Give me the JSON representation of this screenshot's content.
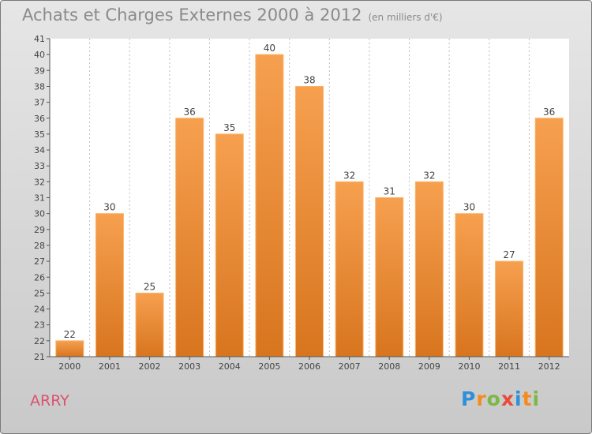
{
  "title": "Achats et Charges Externes 2000 à 2012",
  "subtitle": "(en milliers d'€)",
  "commune": "ARRY",
  "logo": {
    "text": "Proxiti",
    "letters": [
      {
        "char": "P",
        "color": "#2f8fd8"
      },
      {
        "char": "r",
        "color": "#f28c1f"
      },
      {
        "char": "o",
        "color": "#7cb843"
      },
      {
        "char": "x",
        "color": "#e84b3a"
      },
      {
        "char": "i",
        "color": "#2f8fd8"
      },
      {
        "char": "t",
        "color": "#f28c1f"
      },
      {
        "char": "i",
        "color": "#7cb843"
      }
    ]
  },
  "colors": {
    "bar_top": "#f6a04f",
    "bar_bottom": "#d8751f",
    "bar_edge": "#fbb46a",
    "axis_text": "#444444",
    "grid": "#bdbdbd"
  },
  "chart_data": {
    "type": "bar",
    "title": "Achats et Charges Externes 2000 à 2012",
    "subtitle": "(en milliers d'€)",
    "categories": [
      "2000",
      "2001",
      "2002",
      "2003",
      "2004",
      "2005",
      "2006",
      "2007",
      "2008",
      "2009",
      "2010",
      "2011",
      "2012"
    ],
    "values": [
      22,
      30,
      25,
      36,
      35,
      40,
      38,
      32,
      31,
      32,
      30,
      27,
      36
    ],
    "ylim": [
      21,
      41
    ],
    "yticks": [
      21,
      22,
      23,
      24,
      25,
      26,
      27,
      28,
      29,
      30,
      31,
      32,
      33,
      34,
      35,
      36,
      37,
      38,
      39,
      40,
      41
    ],
    "grid": "vertical dotted",
    "data_labels": true
  }
}
